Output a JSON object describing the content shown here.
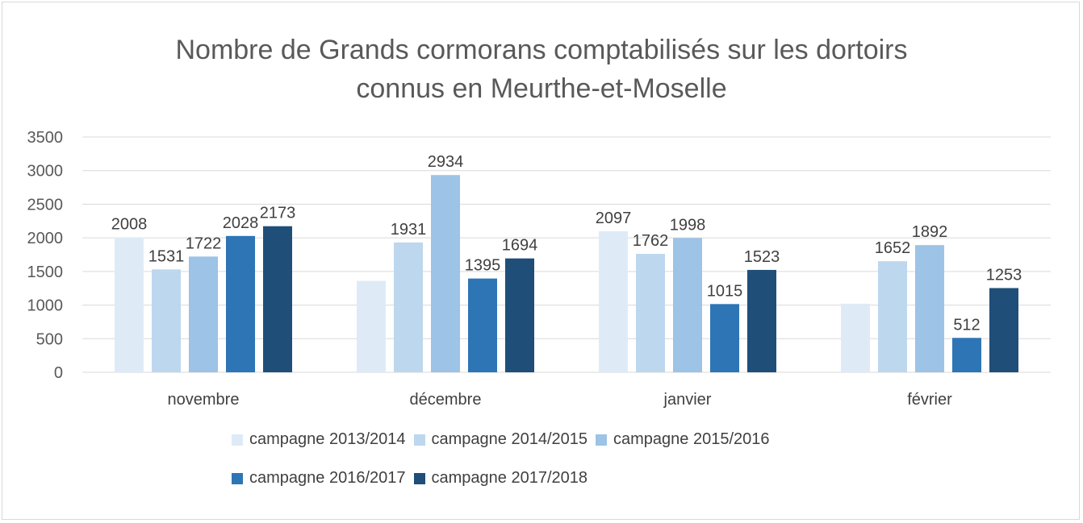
{
  "chart_data": {
    "type": "bar",
    "title_lines": [
      "Nombre de Grands cormorans comptabilisés sur les dortoirs",
      "connus en Meurthe-et-Moselle"
    ],
    "categories": [
      "novembre",
      "décembre",
      "janvier",
      "février"
    ],
    "ylim": [
      0,
      3500
    ],
    "yticks": [
      "0",
      "500",
      "1000",
      "1500",
      "2000",
      "2500",
      "3000",
      "3500"
    ],
    "grid": true,
    "legend_position": "bottom",
    "series": [
      {
        "name": "campagne 2013/2014",
        "color": "#deebf7",
        "values": [
          2008,
          1360,
          2097,
          1020
        ],
        "labels": [
          "2008",
          "",
          "2097",
          ""
        ]
      },
      {
        "name": "campagne 2014/2015",
        "color": "#bdd7ee",
        "values": [
          1531,
          1931,
          1762,
          1652
        ],
        "labels": [
          "1531",
          "1931",
          "1762",
          "1652"
        ]
      },
      {
        "name": "campagne 2015/2016",
        "color": "#9dc3e6",
        "values": [
          1722,
          2934,
          1998,
          1892
        ],
        "labels": [
          "1722",
          "2934",
          "1998",
          "1892"
        ]
      },
      {
        "name": "campagne 2016/2017",
        "color": "#2e75b6",
        "values": [
          2028,
          1395,
          1015,
          512
        ],
        "labels": [
          "2028",
          "1395",
          "1015",
          "512"
        ]
      },
      {
        "name": "campagne 2017/2018",
        "color": "#1f4e79",
        "values": [
          2173,
          1694,
          1523,
          1253
        ],
        "labels": [
          "2173",
          "1694",
          "1523",
          "1253"
        ]
      }
    ]
  }
}
